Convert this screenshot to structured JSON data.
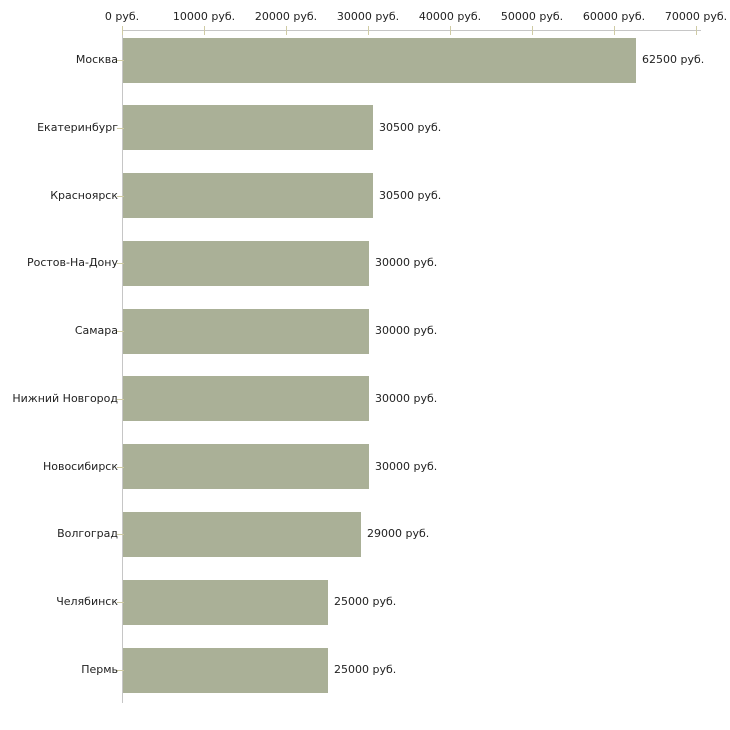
{
  "chart_data": {
    "type": "bar",
    "orientation": "horizontal",
    "title": "",
    "xlabel": "",
    "ylabel": "",
    "unit": "руб.",
    "categories": [
      "Москва",
      "Екатеринбург",
      "Красноярск",
      "Ростов-На-Дону",
      "Самара",
      "Нижний Новгород",
      "Новосибирск",
      "Волгоград",
      "Челябинск",
      "Пермь"
    ],
    "values": [
      62500,
      30500,
      30500,
      30000,
      30000,
      30000,
      30000,
      29000,
      25000,
      25000
    ],
    "value_labels": [
      "62500 руб.",
      "30500 руб.",
      "30500 руб.",
      "30000 руб.",
      "30000 руб.",
      "30000 руб.",
      "30000 руб.",
      "29000 руб.",
      "25000 руб.",
      "25000 руб."
    ],
    "x_ticks": [
      0,
      10000,
      20000,
      30000,
      40000,
      50000,
      60000,
      70000
    ],
    "x_tick_labels": [
      "0 руб.",
      "10000 руб.",
      "20000 руб.",
      "30000 руб.",
      "40000 руб.",
      "50000 руб.",
      "60000 руб.",
      "70000 руб."
    ],
    "xlim": [
      0,
      70000
    ],
    "grid": "off",
    "legend": "none",
    "axis_position": "top",
    "colors": {
      "bar": "#aab097",
      "axis_line": "#c6c6c6",
      "tick": "#cfcba4",
      "text": "#222222",
      "background": "#ffffff"
    }
  }
}
